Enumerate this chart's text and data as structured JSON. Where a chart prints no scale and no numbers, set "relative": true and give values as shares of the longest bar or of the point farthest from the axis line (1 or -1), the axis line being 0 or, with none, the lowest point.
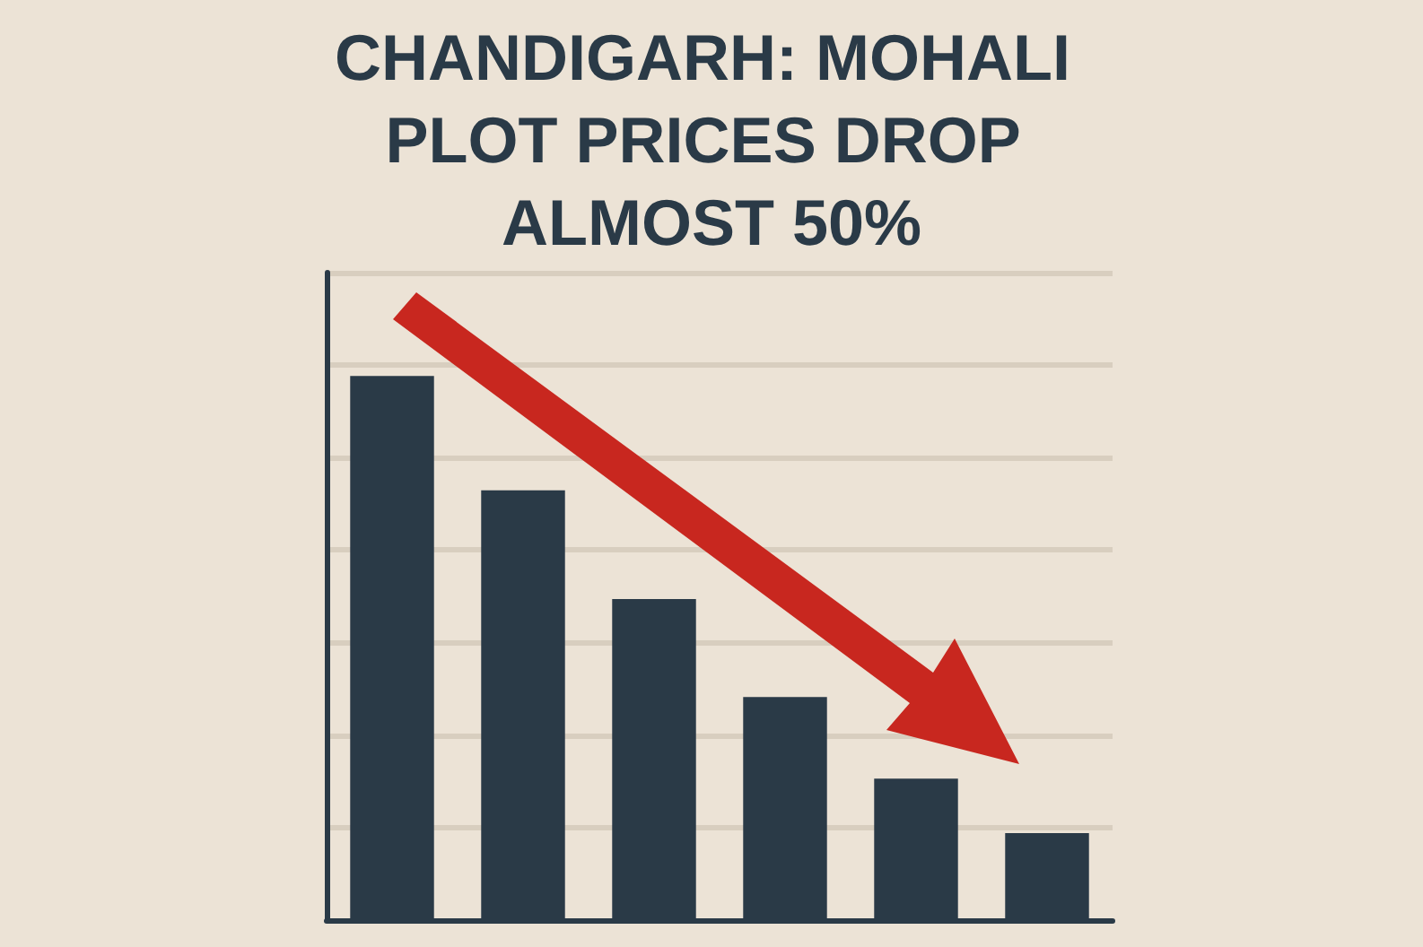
{
  "chart_data": {
    "type": "bar",
    "title": "CHANDIGARH: MOHALI PLOT PRICES DROP ALMOST 50%",
    "categories": [
      null,
      null,
      null,
      null,
      null,
      null
    ],
    "values": [
      1,
      0.79,
      0.59,
      0.41,
      0.26,
      0.16
    ],
    "color": "#2a3a47",
    "relative": true,
    "grid": "y"
  }
}
